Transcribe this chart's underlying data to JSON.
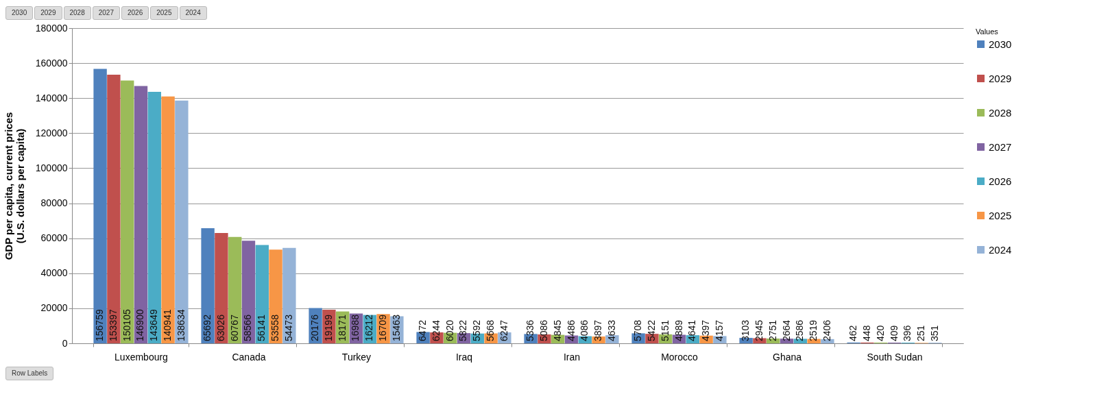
{
  "chart_data": {
    "type": "bar",
    "ylabel": "GDP per capita, current prices\n(U.S. dollars per capita)",
    "legend_title": "Values",
    "legend": "right",
    "categories": [
      "Luxembourg",
      "Canada",
      "Turkey",
      "Iraq",
      "Iran",
      "Morocco",
      "Ghana",
      "South Sudan"
    ],
    "series": [
      {
        "name": "2030",
        "color": "#4f81bd",
        "values": [
          156759,
          65692,
          20176,
          6472,
          5336,
          5708,
          3103,
          462
        ]
      },
      {
        "name": "2029",
        "color": "#c0504d",
        "values": [
          153397,
          63026,
          19199,
          6244,
          5086,
          5422,
          2945,
          448
        ]
      },
      {
        "name": "2028",
        "color": "#9bbb59",
        "values": [
          150105,
          60767,
          18171,
          6020,
          4845,
          5151,
          2751,
          420
        ]
      },
      {
        "name": "2027",
        "color": "#8064a2",
        "values": [
          146900,
          58566,
          16988,
          5822,
          4486,
          4889,
          2664,
          409
        ]
      },
      {
        "name": "2026",
        "color": "#4bacc6",
        "values": [
          143649,
          56141,
          16212,
          5592,
          4086,
          4641,
          2586,
          396
        ]
      },
      {
        "name": "2025",
        "color": "#f79646",
        "values": [
          140941,
          53558,
          16709,
          5668,
          3897,
          4397,
          2519,
          251
        ]
      },
      {
        "name": "2024",
        "color": "#95b3d7",
        "values": [
          138634,
          54473,
          15463,
          6247,
          4633,
          4157,
          2406,
          351
        ]
      }
    ],
    "ylim": [
      0,
      180000
    ],
    "yticks": [
      0,
      20000,
      40000,
      60000,
      80000,
      100000,
      120000,
      140000,
      160000,
      180000
    ],
    "grid": "y",
    "data_labels": true,
    "annotations": [
      "2030",
      "2029",
      "2028",
      "2027",
      "2026",
      "2025",
      "2024",
      "Row Labels"
    ]
  }
}
